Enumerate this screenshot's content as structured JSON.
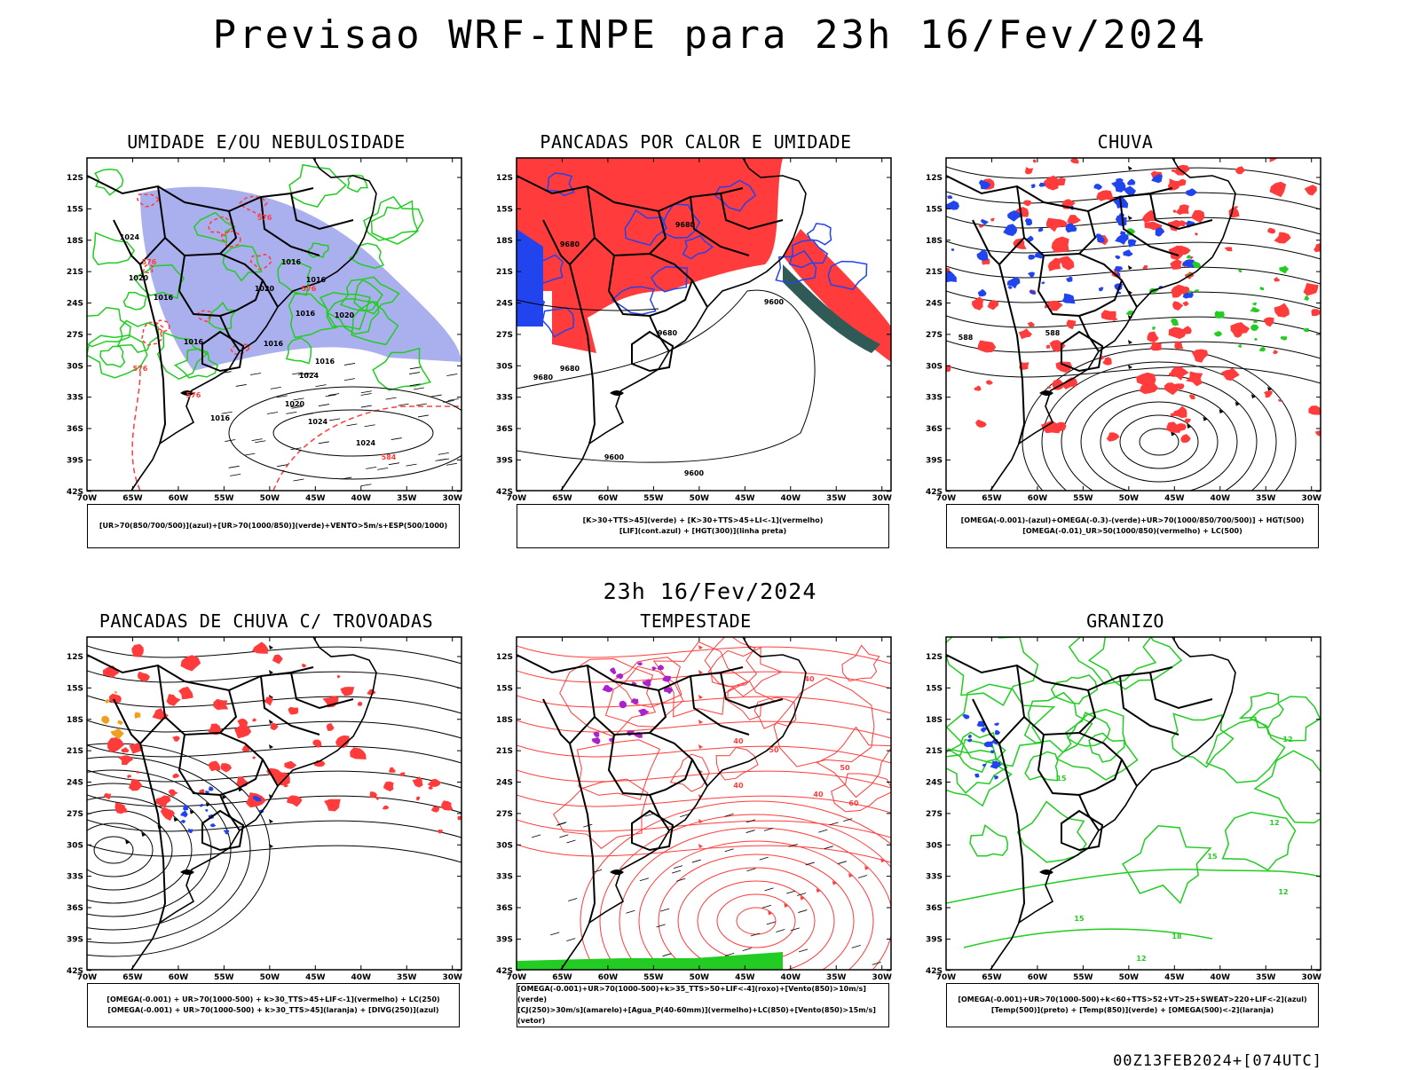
{
  "main_title": "Previsao WRF-INPE  para 23h 16/Fev/2024",
  "mid_title": "23h 16/Fev/2024",
  "footer": "00Z13FEB2024+[074UTC]",
  "axes": {
    "lat_labels": [
      "12S",
      "15S",
      "18S",
      "21S",
      "24S",
      "27S",
      "30S",
      "33S",
      "36S",
      "39S",
      "42S"
    ],
    "lon_labels": [
      "70W",
      "65W",
      "60W",
      "55W",
      "50W",
      "45W",
      "40W",
      "35W",
      "30W"
    ]
  },
  "colors": {
    "blue_fill": "#aab0ee",
    "green": "#22cc22",
    "red": "#ff3b3b",
    "blue": "#2244ee",
    "dark_teal": "#2f5a55",
    "orange": "#f0a020",
    "purple": "#aa22cc"
  },
  "panels": [
    {
      "title": "UMIDADE E/OU NEBULOSIDADE",
      "legend": [
        "[UR>70(850/700/500)](azul)+[UR>70(1000/850)](verde)+VENTO>5m/s+ESP(500/1000)"
      ],
      "contour_labels": [
        "1016",
        "1016",
        "1016",
        "1024",
        "1020",
        "1016",
        "1016",
        "1024",
        "1020",
        "1016",
        "1020",
        "1024",
        "1016",
        "1016",
        "1020",
        "1024",
        "576",
        "576",
        "576",
        "576",
        "576",
        "584"
      ]
    },
    {
      "title": "PANCADAS POR CALOR E UMIDADE",
      "legend": [
        "[K>30+TTS>45](verde) + [K>30+TTS>45+LI<-1](vermelho)",
        "[LIF](cont.azul) + [HGT(300)](linha preta)"
      ],
      "contour_labels": [
        "9680",
        "9680",
        "9680",
        "9600",
        "9680",
        "9600",
        "9600",
        "9680"
      ]
    },
    {
      "title": "CHUVA",
      "legend": [
        "[OMEGA(-0.001)-(azul)+OMEGA(-0.3)-(verde)+UR>70(1000/850/700/500)] + HGT(500)",
        "[OMEGA(-0.01)_UR>50(1000/850)(vermelho) + LC(500)"
      ],
      "contour_labels": [
        "588",
        "588"
      ]
    },
    {
      "title": "PANCADAS DE CHUVA C/ TROVOADAS",
      "legend": [
        "[OMEGA(-0.001) + UR>70(1000-500) + k>30_TTS>45+LIF<-1](vermelho) + LC(250)",
        "[OMEGA(-0.001) + UR>70(1000-500) + k>30_TTS>45](laranja) + [DIVG(250)](azul)"
      ],
      "contour_labels": []
    },
    {
      "title": "TEMPESTADE",
      "legend": [
        "[OMEGA(-0.001)+UR>70(1000-500)+k>35_TTS>50+LIF<-4](roxo)+[Vento(850)>10m/s](verde)",
        "[CJ(250)>30m/s](amarelo)+[Agua_P(40-60mm)](vermelho)+LC(850)+[Vento(850)>15m/s](vetor)"
      ],
      "contour_labels": [
        "40",
        "40",
        "50",
        "50",
        "40",
        "60",
        "40"
      ]
    },
    {
      "title": "GRANIZO",
      "legend": [
        "[OMEGA(-0.001)+UR>70(1000-500)+k<60+TTS>52+VT>25+SWEAT>220+LIF<-2](azul)",
        "[Temp(500)](preto) + [Temp(850)](verde) + [OMEGA(500)<-2](laranja)"
      ],
      "contour_labels": [
        "12",
        "15",
        "18",
        "12",
        "15",
        "12",
        "12",
        "15",
        "12"
      ]
    }
  ]
}
